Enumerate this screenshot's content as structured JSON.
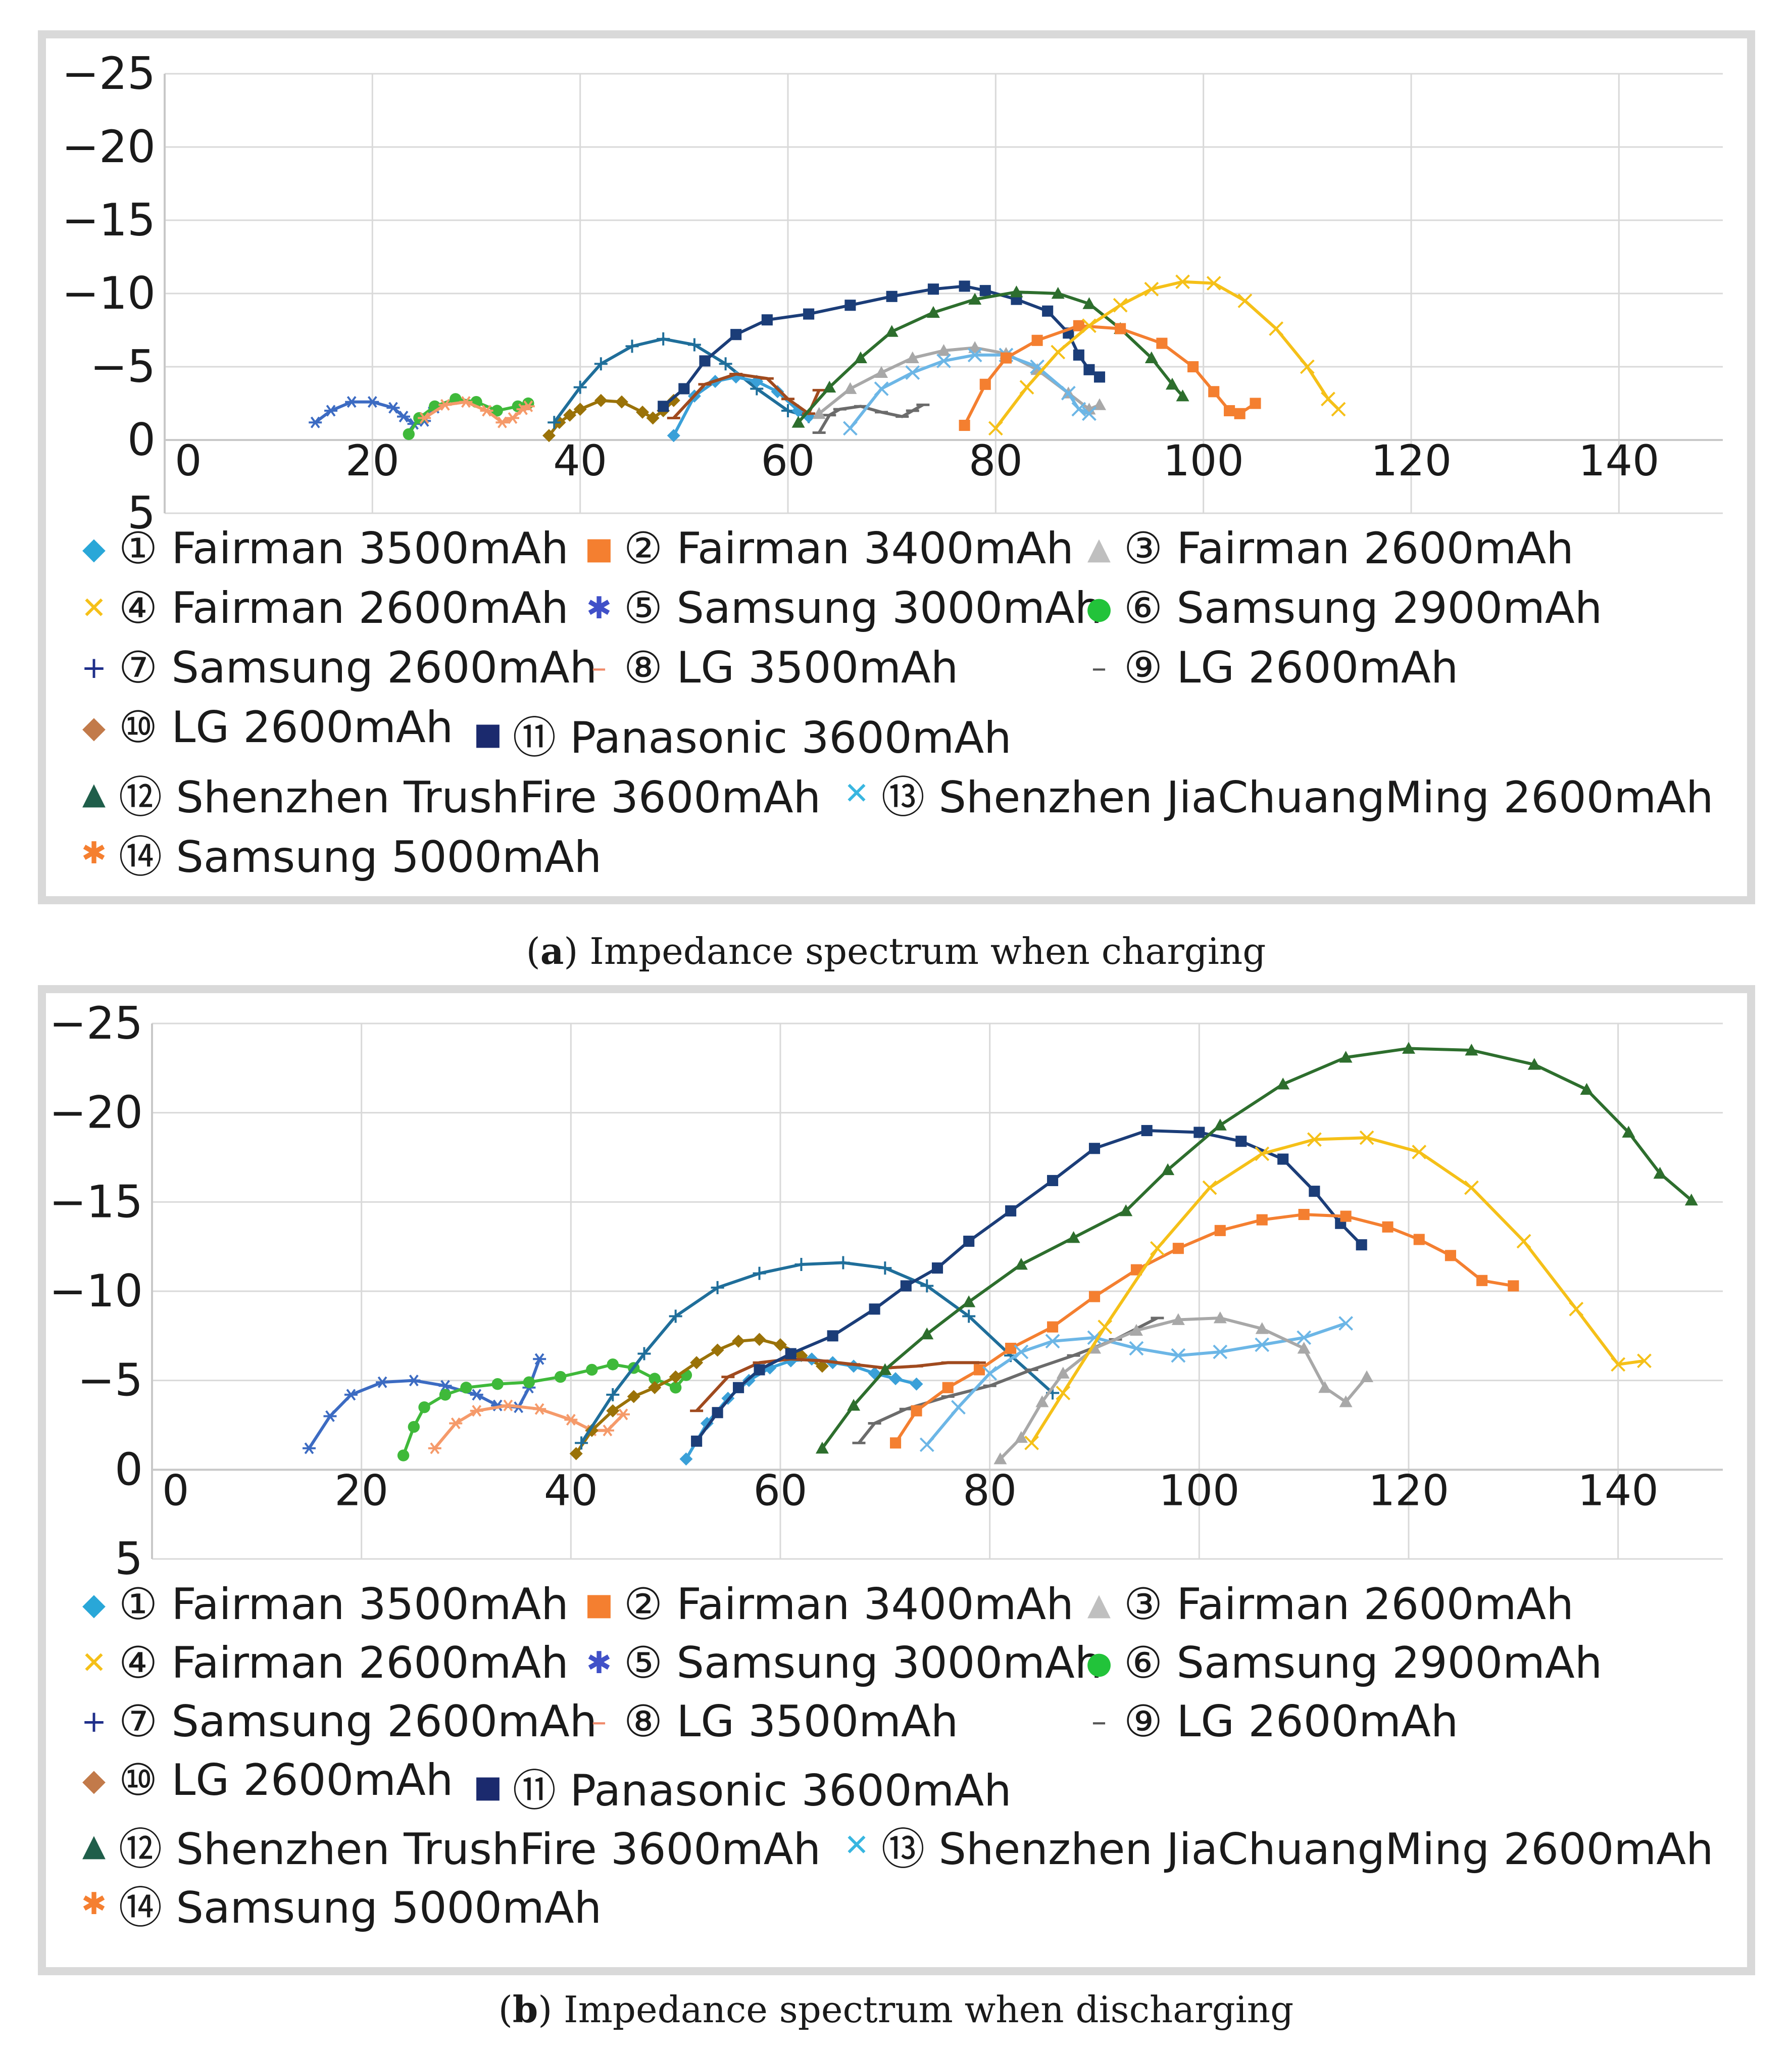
{
  "series_styles": [
    {
      "id": 1,
      "label": "① Fairman 3500mAh",
      "color": "#3aa0d8",
      "marker": "diamond"
    },
    {
      "id": 2,
      "label": "② Fairman 3400mAh",
      "color": "#f47f30",
      "marker": "square"
    },
    {
      "id": 3,
      "label": "③ Fairman 2600mAh",
      "color": "#a8a8a8",
      "marker": "triangle"
    },
    {
      "id": 4,
      "label": "④ Fairman 2600mAh",
      "color": "#f5c018",
      "marker": "x"
    },
    {
      "id": 5,
      "label": "⑤ Samsung 3000mAh",
      "color": "#3c6bc2",
      "marker": "star"
    },
    {
      "id": 6,
      "label": "⑥ Samsung 2900mAh",
      "color": "#3fb93a",
      "marker": "circle"
    },
    {
      "id": 7,
      "label": "⑦ Samsung 2600mAh",
      "color": "#1f6e9a",
      "marker": "plus"
    },
    {
      "id": 8,
      "label": "⑧ LG 3500mAh",
      "color": "#a04a1e",
      "marker": "dash"
    },
    {
      "id": 9,
      "label": "⑨ LG 2600mAh",
      "color": "#6b6b6b",
      "marker": "dash"
    },
    {
      "id": 10,
      "label": "⑩ LG 2600mAh",
      "color": "#9a7208",
      "marker": "diamond"
    },
    {
      "id": 11,
      "label": "⑪ Panasonic 3600mAh",
      "color": "#1b3d78",
      "marker": "square"
    },
    {
      "id": 12,
      "label": "⑫ Shenzhen TrushFire 3600mAh",
      "color": "#2d6e2d",
      "marker": "triangle"
    },
    {
      "id": 13,
      "label": "⑬ Shenzhen JiaChuangMing 2600mAh",
      "color": "#6cb6e6",
      "marker": "x"
    },
    {
      "id": 14,
      "label": "⑭ Samsung 5000mAh",
      "color": "#f59a6a",
      "marker": "star"
    }
  ],
  "legend_symbol_colors": {
    "1": "#29a7d8",
    "2": "#f47f30",
    "3": "#bfbfbf",
    "4": "#f5c018",
    "5": "#4050c8",
    "6": "#22c33a",
    "7": "#1f2f8a",
    "8": "#f08a6a",
    "9": "#555555",
    "10": "#c27a4a",
    "11": "#1b2a6e",
    "12": "#1f5e4a",
    "13": "#38b6e0",
    "14": "#f57f30"
  },
  "chart_data": [
    {
      "type": "line",
      "caption_letter": "a",
      "caption_text": " Impedance spectrum when charging",
      "xlim": [
        0,
        150
      ],
      "ylim": [
        5,
        -25
      ],
      "x_ticks": [
        "0",
        "20",
        "40",
        "60",
        "80",
        "100",
        "120",
        "140"
      ],
      "y_ticks": [
        "−25",
        "−20",
        "−15",
        "−10",
        "−5",
        "0",
        "5"
      ],
      "series": [
        {
          "id": 5,
          "x": [
            14.5,
            16,
            18,
            20,
            22,
            23,
            24,
            25,
            26
          ],
          "y": [
            -1.2,
            -2,
            -2.6,
            -2.6,
            -2.2,
            -1.6,
            -1.1,
            -1.3,
            -2.2
          ]
        },
        {
          "id": 6,
          "x": [
            23.5,
            24.5,
            26,
            28,
            30,
            32,
            34,
            35
          ],
          "y": [
            -0.4,
            -1.5,
            -2.3,
            -2.8,
            -2.6,
            -2,
            -2.3,
            -2.5
          ]
        },
        {
          "id": 14,
          "x": [
            25,
            27,
            29,
            31,
            32.5,
            33.5,
            34.5,
            35
          ],
          "y": [
            -1.5,
            -2.4,
            -2.6,
            -2,
            -1.2,
            -1.5,
            -2.1,
            -2.3
          ]
        },
        {
          "id": 10,
          "x": [
            37,
            38,
            39,
            40,
            42,
            44,
            46,
            47,
            48,
            49
          ],
          "y": [
            -0.3,
            -1.2,
            -1.7,
            -2.1,
            -2.7,
            -2.6,
            -1.9,
            -1.5,
            -2,
            -2.7
          ]
        },
        {
          "id": 7,
          "x": [
            37.5,
            40,
            42,
            45,
            48,
            51,
            54,
            57,
            60,
            62
          ],
          "y": [
            -1.2,
            -3.6,
            -5.2,
            -6.4,
            -6.9,
            -6.5,
            -5.2,
            -3.5,
            -2,
            -1.6
          ]
        },
        {
          "id": 1,
          "x": [
            49,
            51,
            53,
            55,
            57,
            59,
            61,
            62
          ],
          "y": [
            -0.3,
            -3,
            -4,
            -4.3,
            -4,
            -3.3,
            -2,
            -1.6
          ]
        },
        {
          "id": 8,
          "x": [
            49,
            52,
            55,
            58,
            60,
            62,
            63
          ],
          "y": [
            -1.5,
            -3.8,
            -4.5,
            -4.2,
            -2.8,
            -1.8,
            -3.4
          ]
        },
        {
          "id": 11,
          "x": [
            48,
            50,
            52,
            55,
            58,
            62,
            66,
            70,
            74,
            77,
            79,
            82,
            85,
            87,
            88,
            89,
            90
          ],
          "y": [
            -2.3,
            -3.5,
            -5.4,
            -7.2,
            -8.2,
            -8.6,
            -9.2,
            -9.8,
            -10.3,
            -10.5,
            -10.2,
            -9.6,
            -8.8,
            -7.3,
            -5.8,
            -4.8,
            -4.3
          ]
        },
        {
          "id": 9,
          "x": [
            63,
            64,
            65,
            67,
            69,
            71,
            72,
            73
          ],
          "y": [
            -0.5,
            -1.7,
            -2.1,
            -2.3,
            -1.9,
            -1.6,
            -2,
            -2.4
          ]
        },
        {
          "id": 12,
          "x": [
            61,
            64,
            67,
            70,
            74,
            78,
            82,
            86,
            89,
            92,
            95,
            97,
            98
          ],
          "y": [
            -1.2,
            -3.6,
            -5.6,
            -7.4,
            -8.7,
            -9.6,
            -10.1,
            -10,
            -9.3,
            -7.6,
            -5.6,
            -3.8,
            -3
          ]
        },
        {
          "id": 3,
          "x": [
            63,
            66,
            69,
            72,
            75,
            78,
            81,
            84,
            87,
            89,
            90
          ],
          "y": [
            -1.8,
            -3.5,
            -4.6,
            -5.6,
            -6.1,
            -6.3,
            -5.9,
            -4.8,
            -3.2,
            -2.1,
            -2.4
          ]
        },
        {
          "id": 13,
          "x": [
            66,
            69,
            72,
            75,
            78,
            81,
            84,
            87,
            88,
            89
          ],
          "y": [
            -0.8,
            -3.5,
            -4.6,
            -5.4,
            -5.8,
            -5.8,
            -5,
            -3.2,
            -2.1,
            -1.8
          ]
        },
        {
          "id": 2,
          "x": [
            77,
            79,
            81,
            84,
            88,
            92,
            96,
            99,
            101,
            102.5,
            103.5,
            105
          ],
          "y": [
            -1,
            -3.8,
            -5.6,
            -6.8,
            -7.8,
            -7.6,
            -6.6,
            -5,
            -3.3,
            -2,
            -1.8,
            -2.5
          ]
        },
        {
          "id": 4,
          "x": [
            80,
            83,
            86,
            89,
            92,
            95,
            98,
            101,
            104,
            107,
            110,
            112,
            113
          ],
          "y": [
            -0.8,
            -3.6,
            -6,
            -7.8,
            -9.2,
            -10.3,
            -10.8,
            -10.7,
            -9.5,
            -7.6,
            -5,
            -2.8,
            -2.1
          ]
        }
      ]
    },
    {
      "type": "line",
      "caption_letter": "b",
      "caption_text": " Impedance spectrum when discharging",
      "xlim": [
        0,
        150
      ],
      "ylim": [
        5,
        -25
      ],
      "x_ticks": [
        "0",
        "20",
        "40",
        "60",
        "80",
        "100",
        "120",
        "140"
      ],
      "y_ticks": [
        "−25",
        "−20",
        "−15",
        "−10",
        "−5",
        "0",
        "5"
      ],
      "series": [
        {
          "id": 5,
          "x": [
            15,
            17,
            19,
            22,
            25,
            28,
            31,
            33,
            35,
            36,
            37
          ],
          "y": [
            -1.2,
            -3,
            -4.2,
            -4.9,
            -5,
            -4.7,
            -4.2,
            -3.6,
            -3.5,
            -4.6,
            -6.2
          ]
        },
        {
          "id": 6,
          "x": [
            24,
            25,
            26,
            28,
            30,
            33,
            36,
            39,
            42,
            44,
            46,
            48,
            50,
            51
          ],
          "y": [
            -0.8,
            -2.4,
            -3.5,
            -4.2,
            -4.6,
            -4.8,
            -4.9,
            -5.2,
            -5.6,
            -5.9,
            -5.7,
            -5.1,
            -4.6,
            -5.3
          ]
        },
        {
          "id": 14,
          "x": [
            27,
            29,
            31,
            34,
            37,
            40,
            42,
            43.5,
            45
          ],
          "y": [
            -1.2,
            -2.6,
            -3.3,
            -3.6,
            -3.4,
            -2.8,
            -2.2,
            -2.2,
            -3.1
          ]
        },
        {
          "id": 10,
          "x": [
            40.5,
            42,
            44,
            46,
            48,
            50,
            52,
            54,
            56,
            58,
            60,
            62,
            64
          ],
          "y": [
            -0.9,
            -2.2,
            -3.3,
            -4.1,
            -4.6,
            -5.2,
            -6,
            -6.7,
            -7.2,
            -7.3,
            -7,
            -6.4,
            -5.8
          ]
        },
        {
          "id": 7,
          "x": [
            41,
            44,
            47,
            50,
            54,
            58,
            62,
            66,
            70,
            74,
            78,
            82,
            86
          ],
          "y": [
            -1.5,
            -4.2,
            -6.5,
            -8.6,
            -10.2,
            -11,
            -11.5,
            -11.6,
            -11.3,
            -10.3,
            -8.6,
            -6.4,
            -4.3
          ]
        },
        {
          "id": 1,
          "x": [
            51,
            53,
            55,
            57,
            59,
            61,
            63,
            65,
            67,
            69,
            71,
            73
          ],
          "y": [
            -0.6,
            -2.6,
            -4,
            -5,
            -5.7,
            -6.1,
            -6.2,
            -6,
            -5.8,
            -5.4,
            -5.1,
            -4.8
          ]
        },
        {
          "id": 8,
          "x": [
            52,
            55,
            58,
            61,
            64,
            67,
            70,
            73,
            76,
            79
          ],
          "y": [
            -3.3,
            -5.2,
            -6,
            -6.2,
            -6.1,
            -5.9,
            -5.7,
            -5.8,
            -6,
            -6
          ]
        },
        {
          "id": 11,
          "x": [
            52,
            54,
            56,
            58,
            61,
            65,
            69,
            72,
            75,
            78,
            82,
            86,
            90,
            95,
            100,
            104,
            108,
            111,
            113.5,
            115.5
          ],
          "y": [
            -1.6,
            -3.2,
            -4.6,
            -5.6,
            -6.5,
            -7.5,
            -9,
            -10.3,
            -11.3,
            -12.8,
            -14.5,
            -16.2,
            -18,
            -19,
            -18.9,
            -18.4,
            -17.4,
            -15.6,
            -13.8,
            -12.6
          ]
        },
        {
          "id": 12,
          "x": [
            64,
            67,
            70,
            74,
            78,
            83,
            88,
            93,
            97,
            102,
            108,
            114,
            120,
            126,
            132,
            137,
            141,
            144,
            147
          ],
          "y": [
            -1.2,
            -3.6,
            -5.6,
            -7.6,
            -9.4,
            -11.5,
            -13,
            -14.5,
            -16.8,
            -19.3,
            -21.6,
            -23.1,
            -23.6,
            -23.5,
            -22.7,
            -21.3,
            -18.9,
            -16.6,
            -15.1
          ]
        },
        {
          "id": 9,
          "x": [
            67.5,
            69,
            72,
            76,
            80,
            84,
            88,
            92,
            96
          ],
          "y": [
            -1.5,
            -2.6,
            -3.4,
            -4.1,
            -4.7,
            -5.6,
            -6.4,
            -7.3,
            -8.5
          ]
        },
        {
          "id": 2,
          "x": [
            71,
            73,
            76,
            79,
            82,
            86,
            90,
            94,
            98,
            102,
            106,
            110,
            114,
            118,
            121,
            124,
            127,
            130
          ],
          "y": [
            -1.5,
            -3.3,
            -4.6,
            -5.6,
            -6.8,
            -8,
            -9.7,
            -11.2,
            -12.4,
            -13.4,
            -14,
            -14.3,
            -14.2,
            -13.6,
            -12.9,
            -12,
            -10.6,
            -10.3
          ]
        },
        {
          "id": 13,
          "x": [
            74,
            77,
            80,
            83,
            86,
            90,
            94,
            98,
            102,
            106,
            110,
            114
          ],
          "y": [
            -1.4,
            -3.5,
            -5.4,
            -6.6,
            -7.2,
            -7.4,
            -6.8,
            -6.4,
            -6.6,
            -7,
            -7.4,
            -8.2
          ]
        },
        {
          "id": 3,
          "x": [
            81,
            83,
            85,
            87,
            90,
            94,
            98,
            102,
            106,
            110,
            112,
            114,
            116
          ],
          "y": [
            -0.6,
            -1.8,
            -3.8,
            -5.4,
            -6.8,
            -7.8,
            -8.4,
            -8.5,
            -7.9,
            -6.8,
            -4.6,
            -3.8,
            -5.2
          ]
        },
        {
          "id": 4,
          "x": [
            84,
            87,
            91,
            96,
            101,
            106,
            111,
            116,
            121,
            126,
            131,
            136,
            140,
            142.5
          ],
          "y": [
            -1.5,
            -4.3,
            -8,
            -12.4,
            -15.8,
            -17.7,
            -18.5,
            -18.6,
            -17.8,
            -15.8,
            -12.8,
            -9,
            -5.9,
            -6.1
          ]
        }
      ]
    }
  ]
}
